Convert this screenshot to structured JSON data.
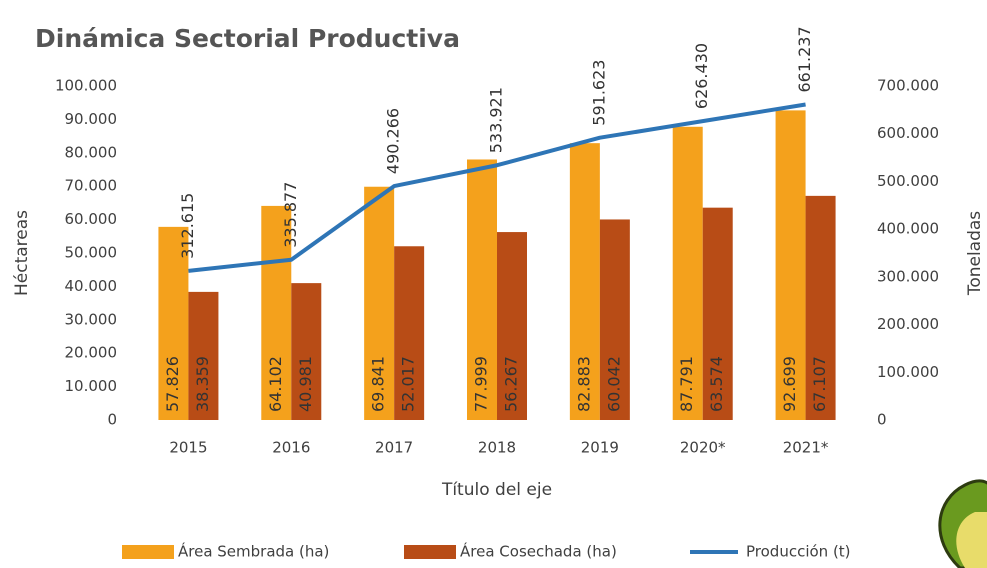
{
  "chart_data": {
    "type": "bar-line",
    "title": "Dinámica Sectorial Productiva",
    "x_label": "Título del eje",
    "y_label": "Héctareas",
    "y2_label": "Toneladas",
    "categories": [
      "2015",
      "2016",
      "2017",
      "2018",
      "2019",
      "2020*",
      "2021*"
    ],
    "series": [
      {
        "name": "Área Sembrada (ha)",
        "type": "bar",
        "color": "#f4a11c",
        "axis": "y",
        "values": [
          57826,
          64102,
          69841,
          77999,
          82883,
          87791,
          92699
        ],
        "value_labels": [
          "57.826",
          "64.102",
          "69.841",
          "77.999",
          "82.883",
          "87.791",
          "92.699"
        ]
      },
      {
        "name": "Área Cosechada (ha)",
        "type": "bar",
        "color": "#b84c16",
        "axis": "y",
        "values": [
          38359,
          40981,
          52017,
          56267,
          60042,
          63574,
          67107
        ],
        "value_labels": [
          "38.359",
          "40.981",
          "52.017",
          "56.267",
          "60.042",
          "63.574",
          "67.107"
        ]
      },
      {
        "name": "Producción  (t)",
        "type": "line",
        "color": "#2e75b6",
        "axis": "y2",
        "values": [
          312615,
          335877,
          490266,
          533921,
          591623,
          626430,
          661237
        ],
        "value_labels": [
          "312.615",
          "335.877",
          "490.266",
          "533.921",
          "591.623",
          "626.430",
          "661.237"
        ]
      }
    ],
    "ylim": [
      0,
      100000
    ],
    "yticks": [
      0,
      {
        "value": 10000,
        "label": "10.000"
      },
      {
        "value": 20000,
        "label": "20.000"
      },
      {
        "value": 30000,
        "label": "30.000"
      },
      {
        "value": 40000,
        "label": "40.000"
      },
      {
        "value": 50000,
        "label": "50.000"
      },
      {
        "value": 60000,
        "label": "60.000"
      },
      {
        "value": 70000,
        "label": "70.000"
      },
      {
        "value": 80000,
        "label": "80.000"
      },
      {
        "value": 90000,
        "label": "90.000"
      },
      {
        "value": 100000,
        "label": "100.000"
      }
    ],
    "y2lim": [
      0,
      700000
    ],
    "y2ticks": [
      0,
      {
        "value": 100000,
        "label": "100.000"
      },
      {
        "value": 200000,
        "label": "200.000"
      },
      {
        "value": 300000,
        "label": "300.000"
      },
      {
        "value": 400000,
        "label": "400.000"
      },
      {
        "value": 500000,
        "label": "500.000"
      },
      {
        "value": 600000,
        "label": "600.000"
      },
      {
        "value": 700000,
        "label": "700.000"
      }
    ],
    "legend": "bottom"
  }
}
